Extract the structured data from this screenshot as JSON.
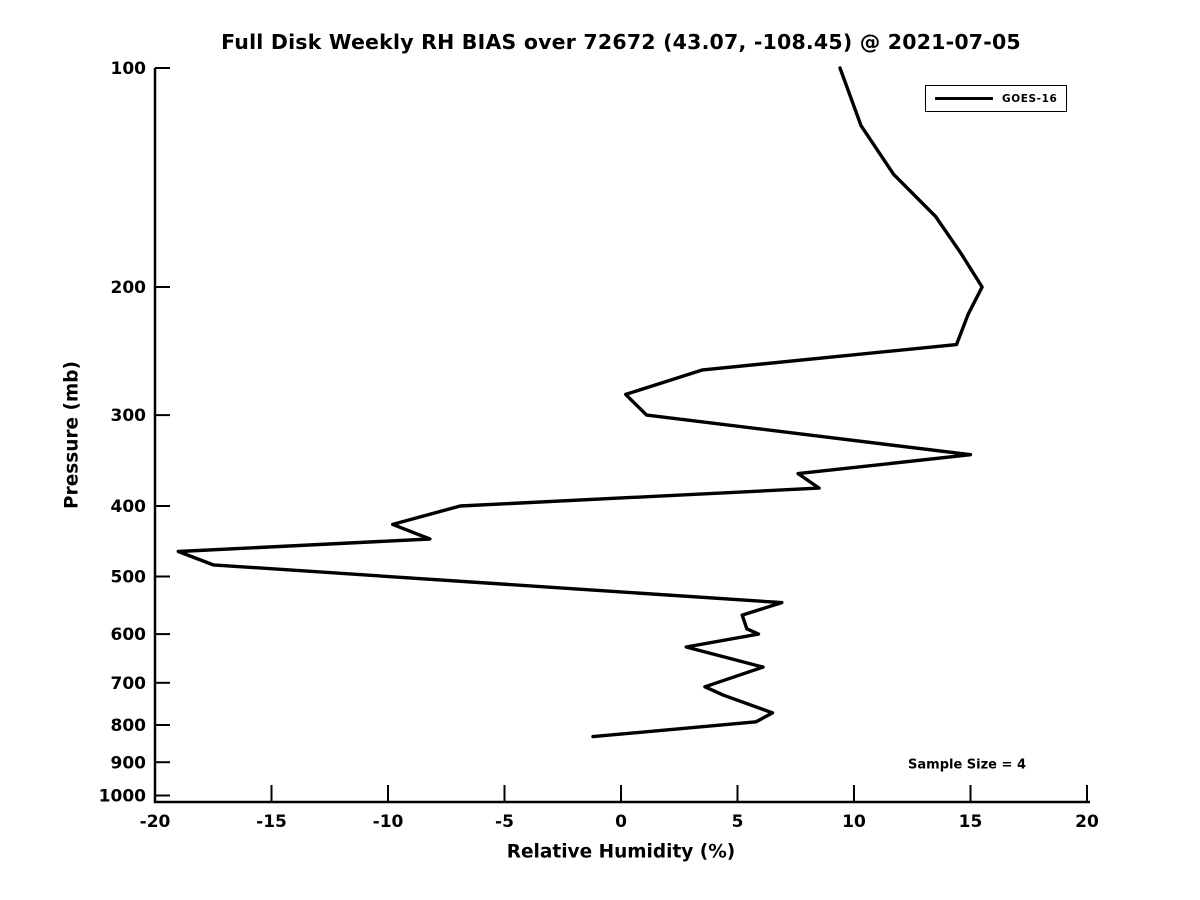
{
  "title": "Full Disk Weekly RH BIAS over 72672 (43.07, -108.45) @ 2021-07-05",
  "chart_data": {
    "type": "line",
    "title": "Full Disk Weekly RH BIAS over 72672 (43.07, -108.45) @ 2021-07-05",
    "xlabel": "Relative Humidity (%)",
    "ylabel": "Pressure (mb)",
    "xlim": [
      -20,
      20
    ],
    "ylim": [
      100,
      1021
    ],
    "yscale": "log",
    "y_inverted": true,
    "grid": false,
    "x_ticks": [
      -20,
      -15,
      -10,
      -5,
      0,
      5,
      10,
      15,
      20
    ],
    "y_ticks": [
      100,
      200,
      300,
      400,
      500,
      600,
      700,
      800,
      900,
      1000
    ],
    "legend": {
      "position": "top-right",
      "entries": [
        {
          "label": "GOES-16",
          "color": "#000000",
          "line_width": 3
        }
      ]
    },
    "annotation": "Sample Size = 4",
    "series": [
      {
        "name": "GOES-16",
        "color": "#000000",
        "x_is": "relative_humidity_percent",
        "y_is": "pressure_mb",
        "points": [
          [
            9.4,
            100
          ],
          [
            10.3,
            120
          ],
          [
            11.7,
            140
          ],
          [
            13.5,
            160
          ],
          [
            14.6,
            180
          ],
          [
            15.5,
            200
          ],
          [
            14.9,
            218
          ],
          [
            14.4,
            240
          ],
          [
            3.5,
            260
          ],
          [
            0.2,
            281
          ],
          [
            1.1,
            300
          ],
          [
            15.0,
            340
          ],
          [
            7.6,
            361
          ],
          [
            8.5,
            378
          ],
          [
            -6.9,
            400
          ],
          [
            -9.8,
            424
          ],
          [
            -8.2,
            444
          ],
          [
            -19.0,
            462
          ],
          [
            -17.5,
            482
          ],
          [
            6.9,
            543
          ],
          [
            5.2,
            565
          ],
          [
            5.4,
            590
          ],
          [
            5.9,
            600
          ],
          [
            2.8,
            625
          ],
          [
            6.1,
            666
          ],
          [
            3.6,
            709
          ],
          [
            4.4,
            728
          ],
          [
            6.5,
            770
          ],
          [
            5.8,
            792
          ],
          [
            -1.2,
            830
          ]
        ]
      }
    ]
  },
  "colors": {
    "line": "#000000",
    "background": "#ffffff",
    "text": "#000000"
  }
}
